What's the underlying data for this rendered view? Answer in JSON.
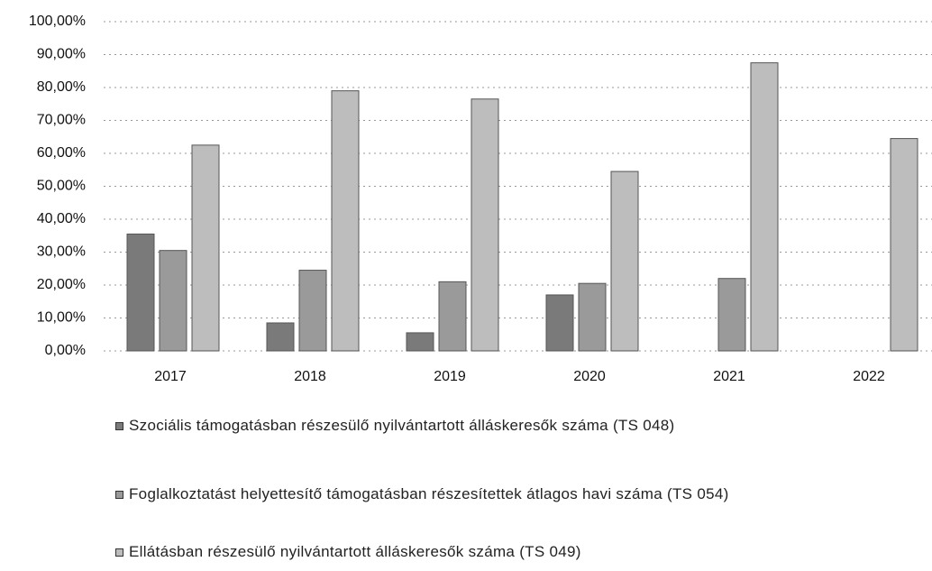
{
  "chart_data": {
    "type": "bar",
    "categories": [
      "2017",
      "2018",
      "2019",
      "2020",
      "2021",
      "2022"
    ],
    "series": [
      {
        "name": "Szociális támogatásban részesülő nyilvántartott álláskeresők száma (TS 048)",
        "color": "#7a7a7a",
        "values": [
          35.5,
          8.5,
          5.5,
          17,
          null,
          null
        ]
      },
      {
        "name": "Foglalkoztatást helyettesítő támogatásban részesítettek átlagos havi száma (TS 054)",
        "color": "#9a9a9a",
        "values": [
          30.5,
          24.5,
          21,
          20.5,
          22,
          null
        ]
      },
      {
        "name": "Ellátásban részesülő nyilvántartott álláskeresők száma (TS 049)",
        "color": "#bdbdbd",
        "values": [
          62.5,
          79,
          76.5,
          54.5,
          87.5,
          64.5
        ]
      }
    ],
    "ylim": [
      0,
      100
    ],
    "yticks": [
      {
        "value": 0,
        "label": "0,00%"
      },
      {
        "value": 10,
        "label": "10,00%"
      },
      {
        "value": 20,
        "label": "20,00%"
      },
      {
        "value": 30,
        "label": "30,00%"
      },
      {
        "value": 40,
        "label": "40,00%"
      },
      {
        "value": 50,
        "label": "50,00%"
      },
      {
        "value": 60,
        "label": "60,00%"
      },
      {
        "value": 70,
        "label": "70,00%"
      },
      {
        "value": 80,
        "label": "80,00%"
      },
      {
        "value": 90,
        "label": "90,00%"
      },
      {
        "value": 100,
        "label": "100,00%"
      }
    ],
    "grid": true
  }
}
